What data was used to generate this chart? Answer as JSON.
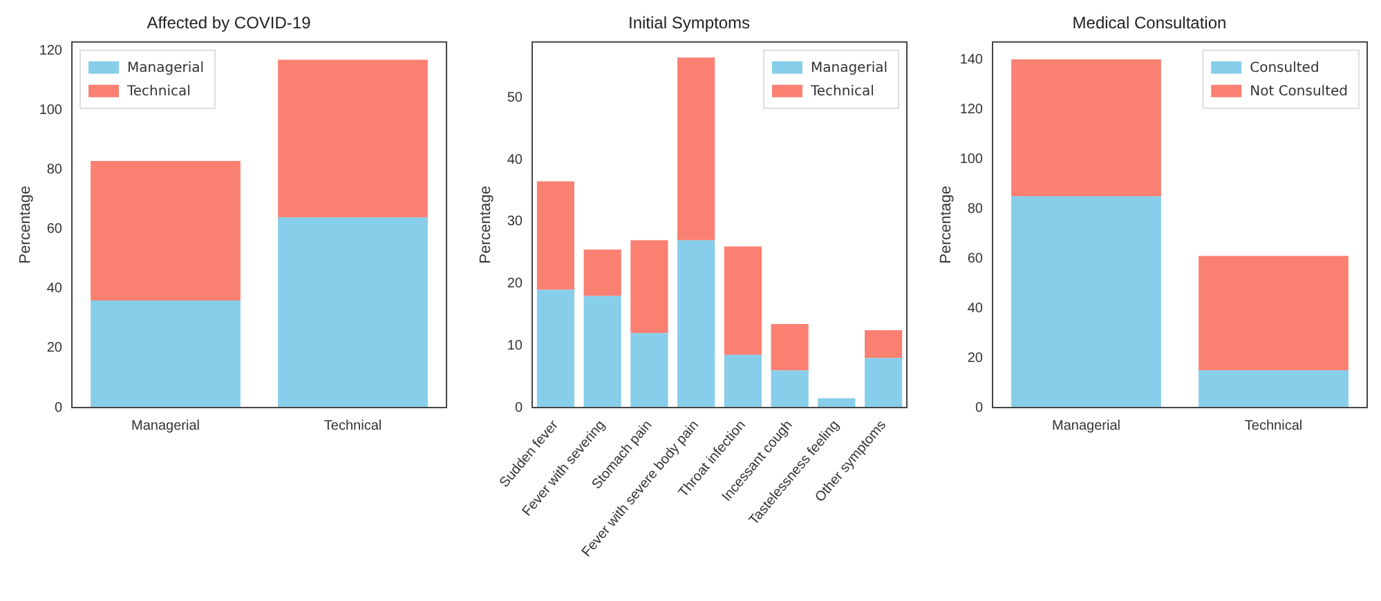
{
  "chart_data": [
    {
      "type": "bar",
      "title": "Affected by COVID-19",
      "ylabel": "Percentage",
      "categories": [
        "Managerial",
        "Technical"
      ],
      "stacked": true,
      "legend": "top left",
      "grid": false,
      "ylim": [
        0,
        123
      ],
      "yticks": [
        0,
        20,
        40,
        60,
        80,
        100,
        120
      ],
      "series": [
        {
          "name": "Managerial",
          "color": "#87ceeb",
          "values": [
            36,
            64
          ]
        },
        {
          "name": "Technical",
          "color": "#fa8072",
          "values": [
            47,
            53
          ]
        }
      ]
    },
    {
      "type": "bar",
      "title": "Initial Symptoms",
      "ylabel": "Percentage",
      "categories": [
        "Sudden fever",
        "Fever with severing",
        "Stomach pain",
        "Fever with severe body pain",
        "Throat infection",
        "Incessant cough",
        "Tastelessness feeling",
        "Other symptoms"
      ],
      "stacked": true,
      "legend": "top right",
      "grid": false,
      "ylim": [
        0,
        59
      ],
      "yticks": [
        0,
        10,
        20,
        30,
        40,
        50
      ],
      "series": [
        {
          "name": "Managerial",
          "color": "#87ceeb",
          "values": [
            19,
            18,
            12,
            27,
            8.5,
            6,
            1.5,
            8
          ]
        },
        {
          "name": "Technical",
          "color": "#fa8072",
          "values": [
            17.5,
            7.5,
            15,
            29.5,
            17.5,
            7.5,
            0,
            4.5
          ]
        }
      ]
    },
    {
      "type": "bar",
      "title": "Medical Consultation",
      "ylabel": "Percentage",
      "categories": [
        "Managerial",
        "Technical"
      ],
      "stacked": true,
      "legend": "top right",
      "grid": false,
      "ylim": [
        0,
        147
      ],
      "yticks": [
        0,
        20,
        40,
        60,
        80,
        100,
        120,
        140
      ],
      "series": [
        {
          "name": "Consulted",
          "color": "#87ceeb",
          "values": [
            85,
            15
          ]
        },
        {
          "name": "Not Consulted",
          "color": "#fa8072",
          "values": [
            55,
            46
          ]
        }
      ]
    }
  ]
}
